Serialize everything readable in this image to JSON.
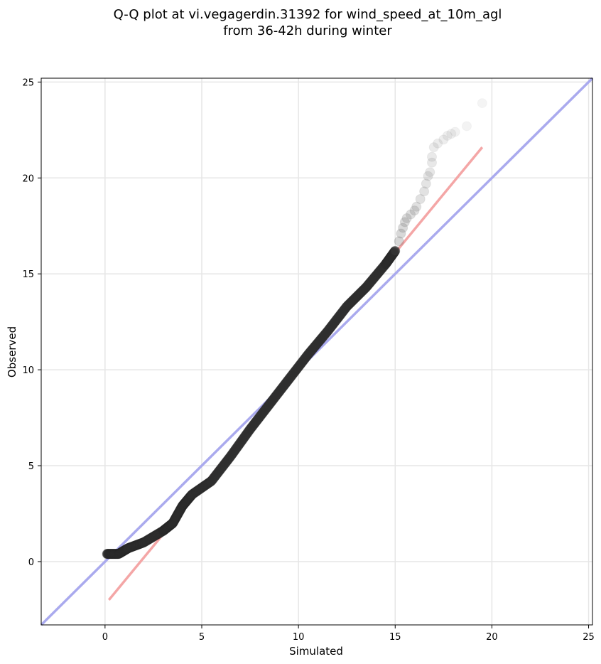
{
  "chart_data": {
    "type": "scatter",
    "title_line1": "Q-Q plot at vi.vegagerdin.31392 for wind_speed_at_10m_agl",
    "title_line2": "from 36-42h during winter",
    "xlabel": "Simulated",
    "ylabel": "Observed",
    "xlim": [
      -3.3,
      25.2
    ],
    "ylim": [
      -3.3,
      25.2
    ],
    "xticks": [
      0,
      5,
      10,
      15,
      20,
      25
    ],
    "yticks": [
      0,
      5,
      10,
      15,
      20,
      25
    ],
    "grid": true,
    "colors": {
      "points": "#333333",
      "identity_line": "#aaaaee",
      "fit_line": "#f4a6a6"
    },
    "identity_line": {
      "x": [
        -3.3,
        25.2
      ],
      "y": [
        -3.3,
        25.2
      ]
    },
    "fit_line": {
      "x": [
        0.2,
        19.5
      ],
      "y": [
        -2.0,
        21.6
      ]
    },
    "quantile_curve": {
      "x": [
        0.1,
        0.7,
        1.2,
        2.0,
        3.0,
        3.5,
        4.0,
        4.5,
        5.5,
        6.5,
        7.5,
        8.5,
        9.5,
        10.5,
        11.5,
        12.5,
        13.5,
        14.5,
        15.0
      ],
      "y": [
        0.4,
        0.4,
        0.7,
        1.0,
        1.6,
        2.0,
        2.9,
        3.5,
        4.2,
        5.5,
        6.9,
        8.2,
        9.5,
        10.8,
        12.0,
        13.3,
        14.3,
        15.5,
        16.2
      ]
    },
    "tail_points": {
      "x": [
        15.2,
        15.3,
        15.4,
        15.5,
        15.6,
        15.8,
        16.0,
        16.1,
        16.3,
        16.5,
        16.6,
        16.7,
        16.8,
        16.9,
        16.9,
        17.0,
        17.2,
        17.5,
        17.7,
        17.9,
        18.1,
        18.7,
        19.5
      ],
      "y": [
        16.7,
        17.1,
        17.4,
        17.7,
        17.9,
        18.1,
        18.3,
        18.5,
        18.9,
        19.3,
        19.7,
        20.1,
        20.3,
        20.8,
        21.1,
        21.6,
        21.8,
        22.0,
        22.2,
        22.3,
        22.4,
        22.7,
        23.9
      ]
    }
  }
}
